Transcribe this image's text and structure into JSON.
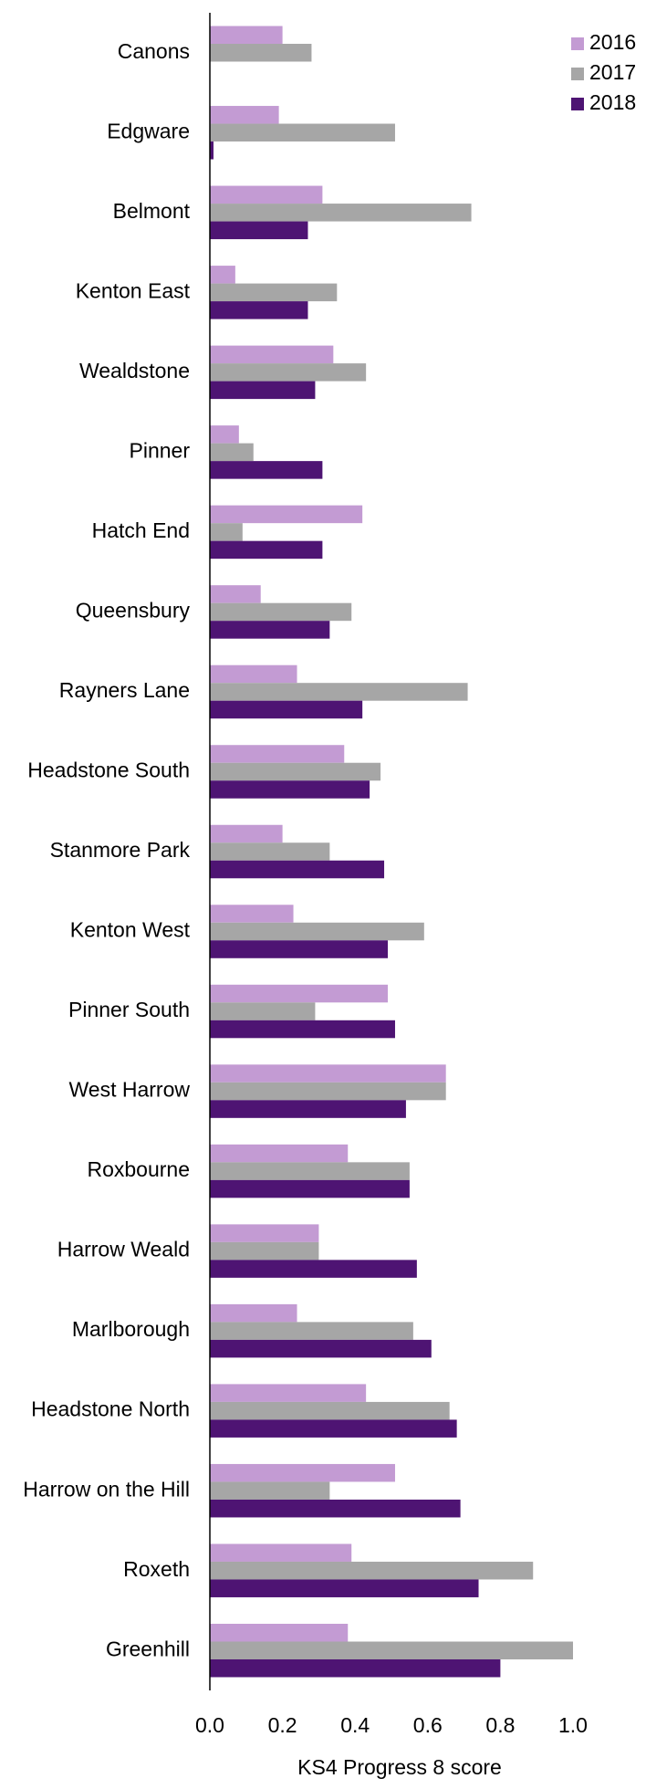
{
  "chart_data": {
    "type": "bar",
    "orientation": "horizontal",
    "x_label": "KS4 Progress 8 score",
    "categories": [
      "Canons",
      "Edgware",
      "Belmont",
      "Kenton East",
      "Wealdstone",
      "Pinner",
      "Hatch End",
      "Queensbury",
      "Rayners Lane",
      "Headstone South",
      "Stanmore Park",
      "Kenton West",
      "Pinner South",
      "West Harrow",
      "Roxbourne",
      "Harrow Weald",
      "Marlborough",
      "Headstone North",
      "Harrow on the Hill",
      "Roxeth",
      "Greenhill"
    ],
    "series": [
      {
        "name": "2016",
        "color": "#c39bd3",
        "values": [
          0.2,
          0.19,
          0.31,
          0.07,
          0.34,
          0.08,
          0.42,
          0.14,
          0.24,
          0.37,
          0.2,
          0.23,
          0.49,
          0.65,
          0.38,
          0.3,
          0.24,
          0.43,
          0.51,
          0.39,
          0.38
        ]
      },
      {
        "name": "2017",
        "color": "#a6a6a6",
        "values": [
          0.28,
          0.51,
          0.72,
          0.35,
          0.43,
          0.12,
          0.09,
          0.39,
          0.71,
          0.47,
          0.33,
          0.59,
          0.29,
          0.65,
          0.55,
          0.3,
          0.56,
          0.66,
          0.33,
          0.89,
          1.0
        ]
      },
      {
        "name": "2018",
        "color": "#4e1473",
        "values": [
          null,
          0.01,
          0.27,
          0.27,
          0.29,
          0.31,
          0.31,
          0.33,
          0.42,
          0.44,
          0.48,
          0.49,
          0.51,
          0.54,
          0.55,
          0.57,
          0.61,
          0.68,
          0.69,
          0.74,
          0.8
        ]
      }
    ],
    "xlim": [
      0,
      1.0
    ],
    "xticks": [
      {
        "value": 0,
        "label": "0.0"
      },
      0.2,
      0.4,
      0.6,
      0.8,
      {
        "value": 1.0,
        "label": "1.0"
      }
    ],
    "grid": false,
    "legend": "top-right"
  }
}
